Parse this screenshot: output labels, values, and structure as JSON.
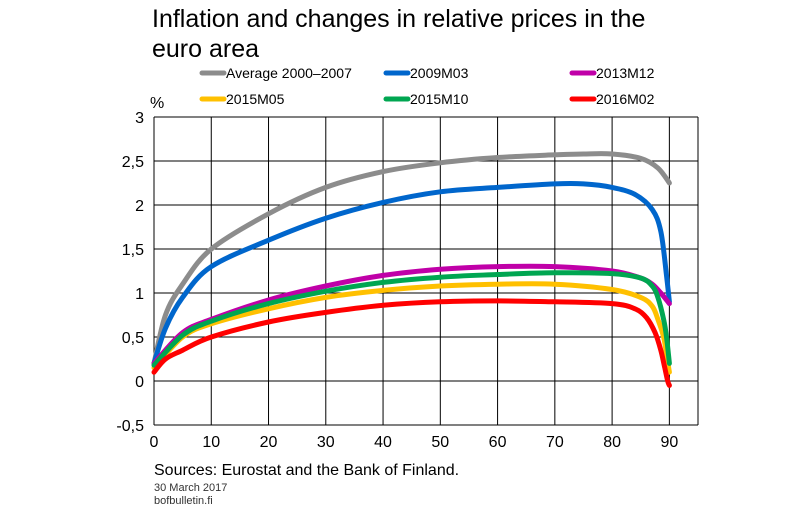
{
  "chart_data": {
    "type": "line",
    "title": "Inflation and changes in relative prices in the euro area",
    "ylabel": "%",
    "xlabel": "",
    "xlim": [
      0,
      95
    ],
    "ylim": [
      -0.5,
      3
    ],
    "xticks": [
      0,
      10,
      20,
      30,
      40,
      50,
      60,
      70,
      80,
      90
    ],
    "yticks": [
      -0.5,
      0,
      0.5,
      1,
      1.5,
      2,
      2.5,
      3
    ],
    "ytick_labels": [
      "-0,5",
      "0",
      "0,5",
      "1",
      "1,5",
      "2",
      "2,5",
      "3"
    ],
    "grid": true,
    "legend_position": "top",
    "series": [
      {
        "name": "Average 2000–2007",
        "color": "#8c8c8c",
        "x": [
          0,
          2,
          5,
          10,
          20,
          30,
          40,
          50,
          60,
          70,
          75,
          80,
          85,
          88,
          90
        ],
        "y": [
          0.2,
          0.75,
          1.1,
          1.5,
          1.9,
          2.2,
          2.38,
          2.48,
          2.54,
          2.57,
          2.58,
          2.58,
          2.53,
          2.42,
          2.25
        ]
      },
      {
        "name": "2009M03",
        "color": "#0066cc",
        "x": [
          0,
          2,
          5,
          10,
          20,
          30,
          40,
          50,
          60,
          70,
          75,
          80,
          84,
          87,
          88.5,
          89.5,
          90
        ],
        "y": [
          0.2,
          0.6,
          0.95,
          1.3,
          1.6,
          1.85,
          2.03,
          2.15,
          2.2,
          2.24,
          2.24,
          2.2,
          2.12,
          1.95,
          1.7,
          1.2,
          0.9
        ]
      },
      {
        "name": "2013M12",
        "color": "#c000a8",
        "x": [
          0,
          5,
          10,
          20,
          30,
          40,
          50,
          60,
          70,
          80,
          85,
          87,
          88.5,
          89.5,
          90
        ],
        "y": [
          0.2,
          0.55,
          0.7,
          0.92,
          1.08,
          1.2,
          1.27,
          1.3,
          1.3,
          1.25,
          1.17,
          1.1,
          1.0,
          0.92,
          0.88
        ]
      },
      {
        "name": "2015M05",
        "color": "#ffc000",
        "x": [
          0,
          5,
          10,
          20,
          30,
          40,
          50,
          60,
          70,
          80,
          85,
          87,
          88,
          89,
          89.5,
          90
        ],
        "y": [
          0.15,
          0.5,
          0.65,
          0.82,
          0.95,
          1.03,
          1.08,
          1.1,
          1.1,
          1.04,
          0.95,
          0.85,
          0.7,
          0.5,
          0.3,
          0.1
        ]
      },
      {
        "name": "2015M10",
        "color": "#00a651",
        "x": [
          0,
          5,
          10,
          20,
          30,
          40,
          50,
          60,
          70,
          80,
          85,
          87,
          88,
          89,
          89.5,
          90
        ],
        "y": [
          0.18,
          0.52,
          0.68,
          0.88,
          1.02,
          1.12,
          1.18,
          1.21,
          1.23,
          1.22,
          1.17,
          1.08,
          0.95,
          0.7,
          0.5,
          0.2
        ]
      },
      {
        "name": "2016M02",
        "color": "#ff0000",
        "x": [
          0,
          2,
          5,
          10,
          20,
          30,
          40,
          50,
          60,
          70,
          80,
          84,
          86,
          87.5,
          88.5,
          89.2,
          89.7,
          90
        ],
        "y": [
          0.1,
          0.25,
          0.35,
          0.5,
          0.67,
          0.78,
          0.86,
          0.9,
          0.91,
          0.9,
          0.88,
          0.82,
          0.72,
          0.55,
          0.35,
          0.15,
          0.0,
          -0.05
        ]
      }
    ]
  },
  "sources": "Sources: Eurostat and the Bank of Finland.",
  "date": "30 March 2017",
  "site": "bofbulletin.fi"
}
